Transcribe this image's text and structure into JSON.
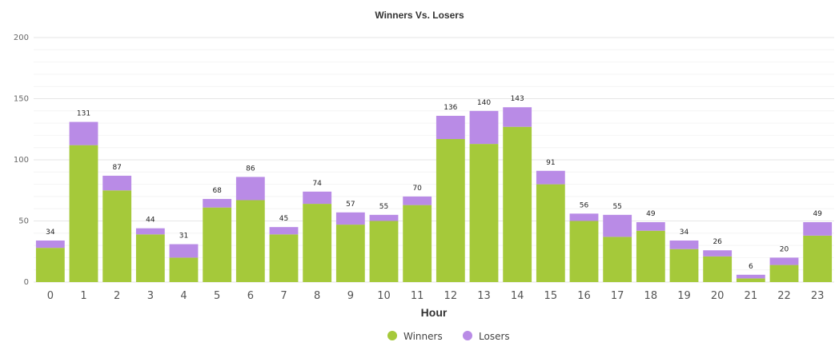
{
  "chart_data": {
    "type": "bar",
    "stacked": true,
    "title": "Winners Vs. Losers",
    "xlabel": "Hour",
    "ylabel": "",
    "ylim": [
      0,
      200
    ],
    "yticks": [
      0,
      50,
      100,
      150,
      200
    ],
    "grid": true,
    "legend_position": "bottom",
    "categories": [
      "0",
      "1",
      "2",
      "3",
      "4",
      "5",
      "6",
      "7",
      "8",
      "9",
      "10",
      "11",
      "12",
      "13",
      "14",
      "15",
      "16",
      "17",
      "18",
      "19",
      "20",
      "21",
      "22",
      "23"
    ],
    "series": [
      {
        "name": "Winners",
        "color": "#a5c93a",
        "values": [
          28,
          112,
          75,
          39,
          20,
          61,
          67,
          39,
          64,
          47,
          50,
          63,
          117,
          113,
          127,
          80,
          50,
          37,
          42,
          27,
          21,
          3,
          14,
          38
        ]
      },
      {
        "name": "Losers",
        "color": "#b98be6",
        "values": [
          6,
          19,
          12,
          5,
          11,
          7,
          19,
          6,
          10,
          10,
          5,
          7,
          19,
          27,
          16,
          11,
          6,
          18,
          7,
          7,
          5,
          3,
          6,
          11
        ]
      }
    ],
    "totals": [
      34,
      131,
      87,
      44,
      31,
      68,
      86,
      45,
      74,
      57,
      55,
      70,
      136,
      140,
      143,
      91,
      56,
      55,
      49,
      34,
      26,
      6,
      20,
      49
    ]
  }
}
